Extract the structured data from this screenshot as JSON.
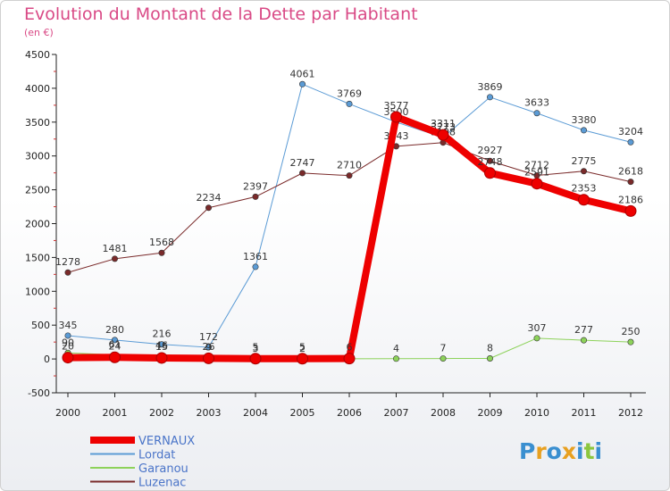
{
  "title": "Evolution du Montant de la Dette par Habitant",
  "subtitle": "(en €)",
  "logo": "Proxiti",
  "chart_data": {
    "type": "line",
    "x": [
      "2000",
      "2001",
      "2002",
      "2003",
      "2004",
      "2005",
      "2006",
      "2007",
      "2008",
      "2009",
      "2010",
      "2011",
      "2012"
    ],
    "ylim": [
      -500,
      4500
    ],
    "yticks": [
      -500,
      0,
      500,
      1000,
      1500,
      2000,
      2500,
      3000,
      3500,
      4000,
      4500
    ],
    "grid": false,
    "legend": "bottom-left",
    "series": [
      {
        "name": "VERNAUX",
        "color": "#ee0000",
        "values": [
          20,
          24,
          15,
          9,
          5,
          5,
          6,
          3577,
          3311,
          2748,
          2591,
          2353,
          2186
        ],
        "labels": [
          "20",
          "24",
          "15",
          "9",
          "5",
          "5",
          "6",
          "3577",
          "3311",
          "2748",
          "2591",
          "2353",
          "2186"
        ]
      },
      {
        "name": "Lordat",
        "color": "#5b9bd5",
        "values": [
          345,
          280,
          216,
          172,
          1361,
          4061,
          3769,
          3500,
          3273,
          3869,
          3633,
          3380,
          3204
        ],
        "labels": [
          "345",
          "280",
          "216",
          "172",
          "1361",
          "4061",
          "3769",
          "3500",
          "3273",
          "3869",
          "3633",
          "3380",
          "3204"
        ]
      },
      {
        "name": "Garanou",
        "color": "#8dd25a",
        "values": [
          90,
          61,
          46,
          26,
          3,
          2,
          3,
          4,
          7,
          8,
          307,
          277,
          250
        ],
        "labels": [
          "90",
          "61",
          "46",
          "26",
          "3",
          "2",
          "3",
          "4",
          "7",
          "8",
          "307",
          "277",
          "250"
        ]
      },
      {
        "name": "Luzenac",
        "color": "#7a2a2a",
        "values": [
          1278,
          1481,
          1568,
          2234,
          2397,
          2747,
          2710,
          3143,
          3198,
          2927,
          2712,
          2775,
          2618
        ],
        "labels": [
          "1278",
          "1481",
          "1568",
          "2234",
          "2397",
          "2747",
          "2710",
          "3143",
          "3198",
          "2927",
          "2712",
          "2775",
          "2618"
        ]
      }
    ]
  }
}
